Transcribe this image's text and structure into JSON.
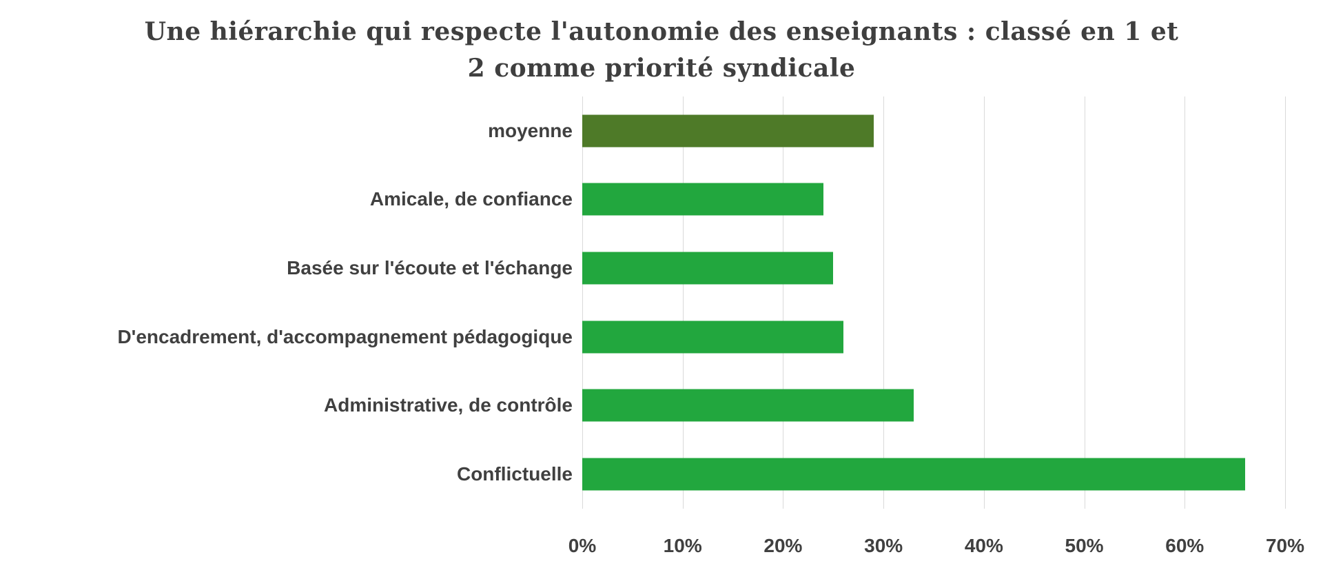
{
  "chart_data": {
    "type": "bar",
    "orientation": "horizontal",
    "title": "Une hiérarchie qui respecte l'autonomie des enseignants : classé en 1 et 2 comme priorité syndicale",
    "title_lines": [
      "Une hiérarchie qui respecte l'autonomie des enseignants : classé en 1 et",
      "2  comme priorité syndicale"
    ],
    "categories": [
      "moyenne",
      "Amicale, de confiance",
      "Basée sur l'écoute et l'échange",
      "D'encadrement, d'accompagnement pédagogique",
      "Administrative, de contrôle",
      "Conflictuelle"
    ],
    "values": [
      29,
      24,
      25,
      26,
      33,
      66
    ],
    "unit": "%",
    "xlabel": "",
    "ylabel": "",
    "xlim": [
      0,
      70
    ],
    "x_ticks": [
      "0%",
      "10%",
      "20%",
      "30%",
      "40%",
      "50%",
      "60%",
      "70%"
    ],
    "grid": true,
    "legend": "none",
    "bar_colors": [
      "#4e7a28",
      "#22a73e",
      "#22a73e",
      "#22a73e",
      "#22a73e",
      "#22a73e"
    ],
    "colors": {
      "bar_default": "#22a73e",
      "bar_moyenne": "#4e7a28",
      "gridline": "#d9d9d9",
      "title_text": "#3f3f3f",
      "label_text": "#404040",
      "background": "#ffffff"
    }
  }
}
